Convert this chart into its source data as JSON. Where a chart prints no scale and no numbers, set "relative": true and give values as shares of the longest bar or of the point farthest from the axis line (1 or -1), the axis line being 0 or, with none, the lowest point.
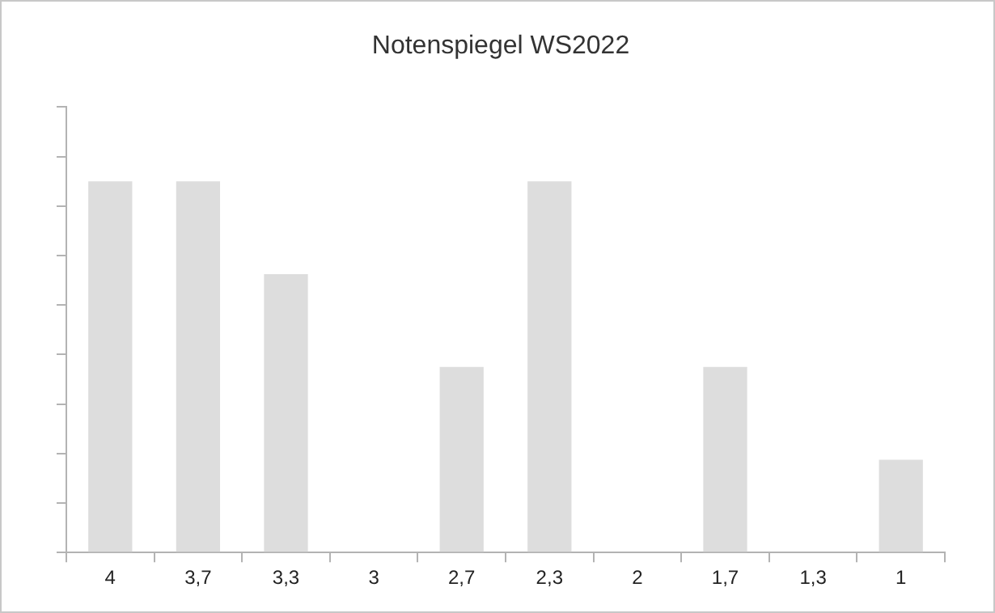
{
  "chart_data": {
    "type": "bar",
    "title": "Notenspiegel WS2022",
    "categories": [
      "4",
      "3,7",
      "3,3",
      "3",
      "2,7",
      "2,3",
      "2",
      "1,7",
      "1,3",
      "1"
    ],
    "values": [
      1,
      1,
      0.75,
      0,
      0.5,
      1,
      0,
      0.5,
      0,
      0.25
    ],
    "color": "#dddddd",
    "relative": true,
    "grid": false,
    "legend": false
  }
}
